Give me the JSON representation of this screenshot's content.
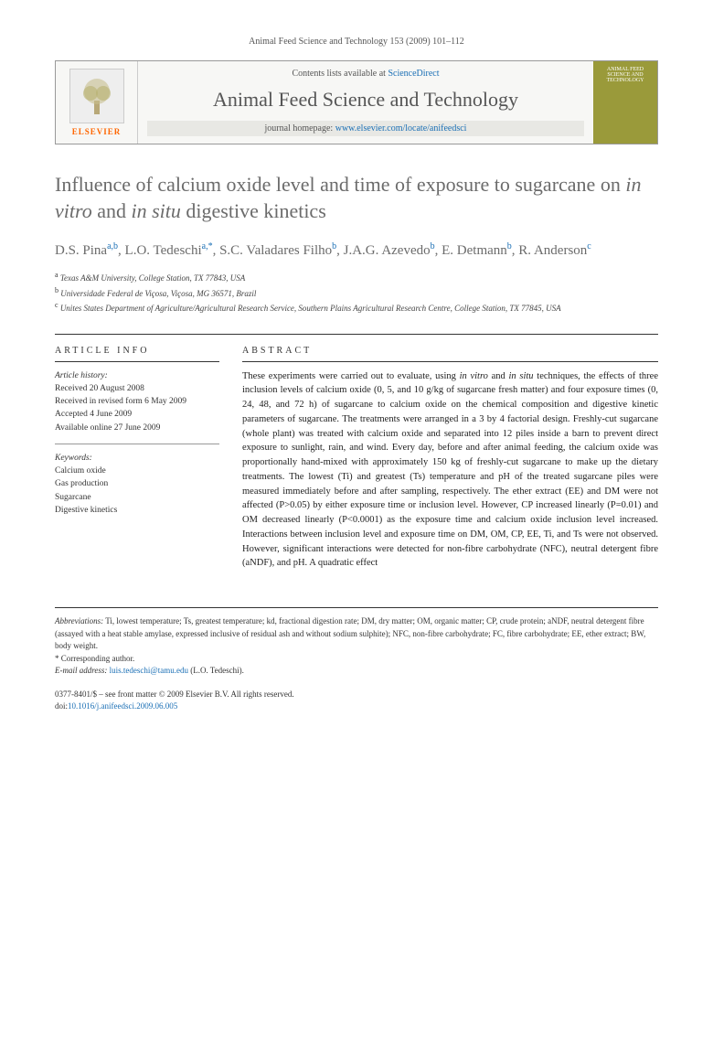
{
  "citation": "Animal Feed Science and Technology 153 (2009) 101–112",
  "header": {
    "contents_prefix": "Contents lists available at ",
    "contents_link": "ScienceDirect",
    "journal_title": "Animal Feed Science and Technology",
    "homepage_prefix": "journal homepage: ",
    "homepage_url": "www.elsevier.com/locate/anifeedsci",
    "publisher": "ELSEVIER",
    "cover_text": "ANIMAL FEED SCIENCE AND TECHNOLOGY"
  },
  "title_html": "Influence of calcium oxide level and time of exposure to sugarcane on <em>in vitro</em> and <em>in situ</em> digestive kinetics",
  "authors_html": "D.S. Pina<sup>a,b</sup>, L.O. Tedeschi<sup>a,*</sup>, S.C. Valadares Filho<sup>b</sup>, J.A.G. Azevedo<sup>b</sup>, E. Detmann<sup>b</sup>, R. Anderson<sup>c</sup>",
  "affiliations": [
    {
      "sup": "a",
      "text": "Texas A&M University, College Station, TX 77843, USA"
    },
    {
      "sup": "b",
      "text": "Universidade Federal de Viçosa, Viçosa, MG 36571, Brazil"
    },
    {
      "sup": "c",
      "text": "Unites States Department of Agriculture/Agricultural Research Service, Southern Plains Agricultural Research Centre, College Station, TX 77845, USA"
    }
  ],
  "article_info": {
    "heading": "ARTICLE INFO",
    "history_label": "Article history:",
    "history": [
      "Received 20 August 2008",
      "Received in revised form 6 May 2009",
      "Accepted 4 June 2009",
      "Available online 27 June 2009"
    ],
    "keywords_label": "Keywords:",
    "keywords": [
      "Calcium oxide",
      "Gas production",
      "Sugarcane",
      "Digestive kinetics"
    ]
  },
  "abstract": {
    "heading": "ABSTRACT",
    "text_html": "These experiments were carried out to evaluate, using <em>in vitro</em> and <em>in situ</em> techniques, the effects of three inclusion levels of calcium oxide (0, 5, and 10 g/kg of sugarcane fresh matter) and four exposure times (0, 24, 48, and 72 h) of sugarcane to calcium oxide on the chemical composition and digestive kinetic parameters of sugarcane. The treatments were arranged in a 3 by 4 factorial design. Freshly-cut sugarcane (whole plant) was treated with calcium oxide and separated into 12 piles inside a barn to prevent direct exposure to sunlight, rain, and wind. Every day, before and after animal feeding, the calcium oxide was proportionally hand-mixed with approximately 150 kg of freshly-cut sugarcane to make up the dietary treatments. The lowest (Ti) and greatest (Ts) temperature and pH of the treated sugarcane piles were measured immediately before and after sampling, respectively. The ether extract (EE) and DM were not affected (P>0.05) by either exposure time or inclusion level. However, CP increased linearly (P=0.01) and OM decreased linearly (P<0.0001) as the exposure time and calcium oxide inclusion level increased. Interactions between inclusion level and exposure time on DM, OM, CP, EE, Ti, and Ts were not observed. However, significant interactions were detected for non-fibre carbohydrate (NFC), neutral detergent fibre (aNDF), and pH. A quadratic effect"
  },
  "footer": {
    "abbrev_label": "Abbreviations:",
    "abbrev_text": " Ti, lowest temperature; Ts, greatest temperature; kd, fractional digestion rate; DM, dry matter; OM, organic matter; CP, crude protein; aNDF, neutral detergent fibre (assayed with a heat stable amylase, expressed inclusive of residual ash and without sodium sulphite); NFC, non-fibre carbohydrate; FC, fibre carbohydrate; EE, ether extract; BW, body weight.",
    "corresponding": "* Corresponding author.",
    "email_label": "E-mail address:",
    "email": "luis.tedeschi@tamu.edu",
    "email_author": " (L.O. Tedeschi).",
    "copyright": "0377-8401/$ – see front matter © 2009 Elsevier B.V. All rights reserved.",
    "doi_label": "doi:",
    "doi": "10.1016/j.anifeedsci.2009.06.005"
  }
}
